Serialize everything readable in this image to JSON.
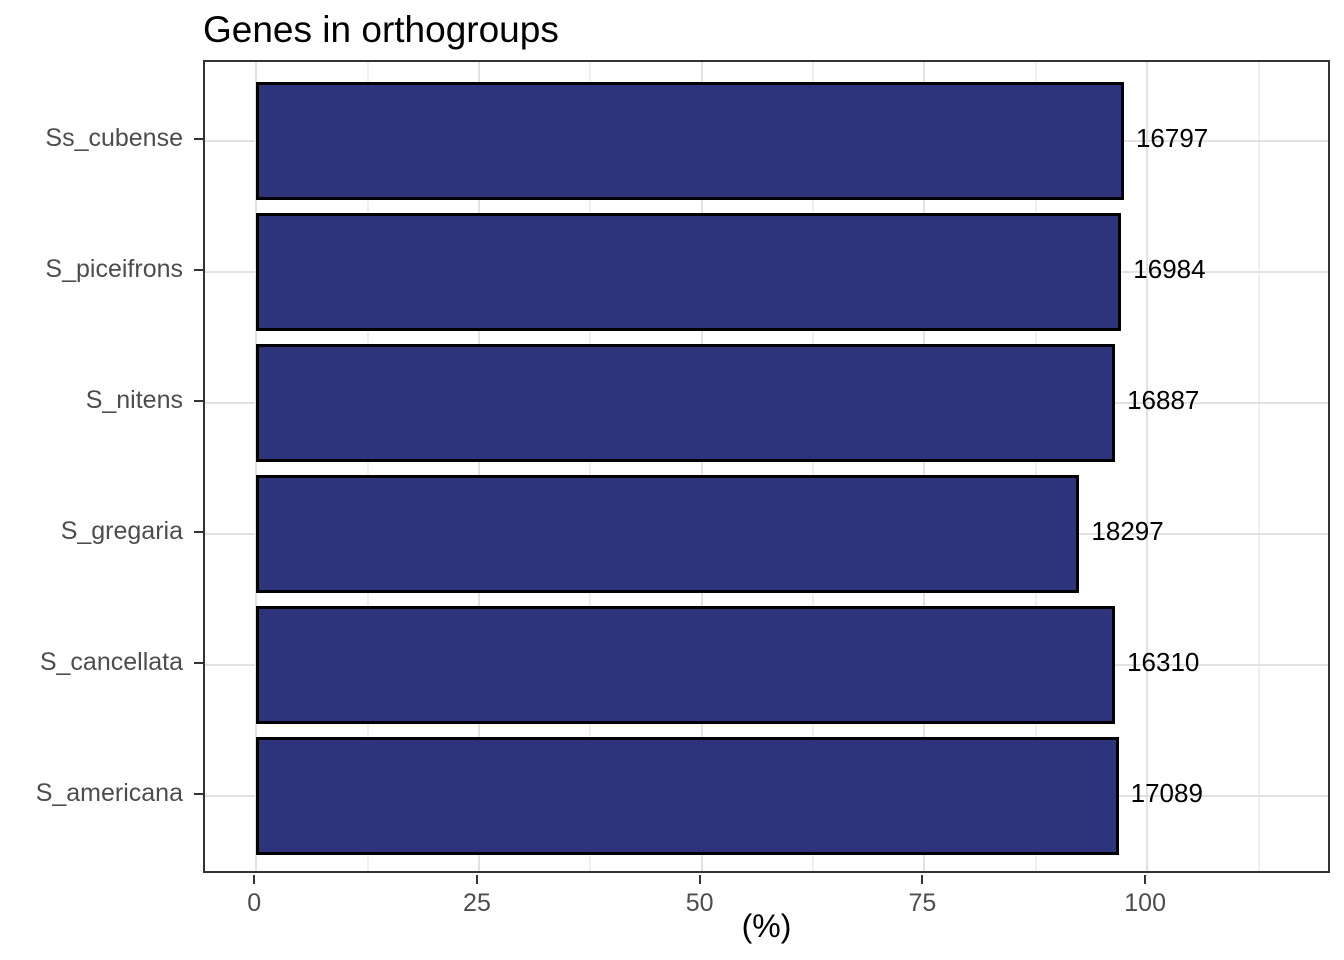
{
  "chart_data": {
    "type": "bar",
    "orientation": "horizontal",
    "title": "Genes in orthogroups",
    "xlabel": "(%)",
    "ylabel": "",
    "categories": [
      "Ss_cubense",
      "S_piceifrons",
      "S_nitens",
      "S_gregaria",
      "S_cancellata",
      "S_americana"
    ],
    "values": [
      97.4,
      97.1,
      96.4,
      92.4,
      96.4,
      96.8
    ],
    "bar_labels": [
      "16797",
      "16984",
      "16887",
      "18297",
      "16310",
      "17089"
    ],
    "x_ticks": [
      0,
      25,
      50,
      75,
      100
    ],
    "x_tick_labels": [
      "0",
      "25",
      "50",
      "75",
      "100"
    ],
    "x_minor_ticks": [
      12.5,
      37.5,
      62.5,
      87.5,
      112.5
    ],
    "xlim": [
      -5.75,
      120.75
    ],
    "bar_width_fraction": 0.9,
    "grid": "vertical major+minor, horizontal major at row centers",
    "legend": "none",
    "colors": {
      "bar_fill": "#2d347c",
      "bar_border": "#000000",
      "grid_major": "#e2e2e2",
      "grid_minor": "#efefef",
      "panel_border": "#333333",
      "axis_text": "#4d4d4d",
      "value_text": "#000000",
      "background": "#ffffff"
    }
  }
}
